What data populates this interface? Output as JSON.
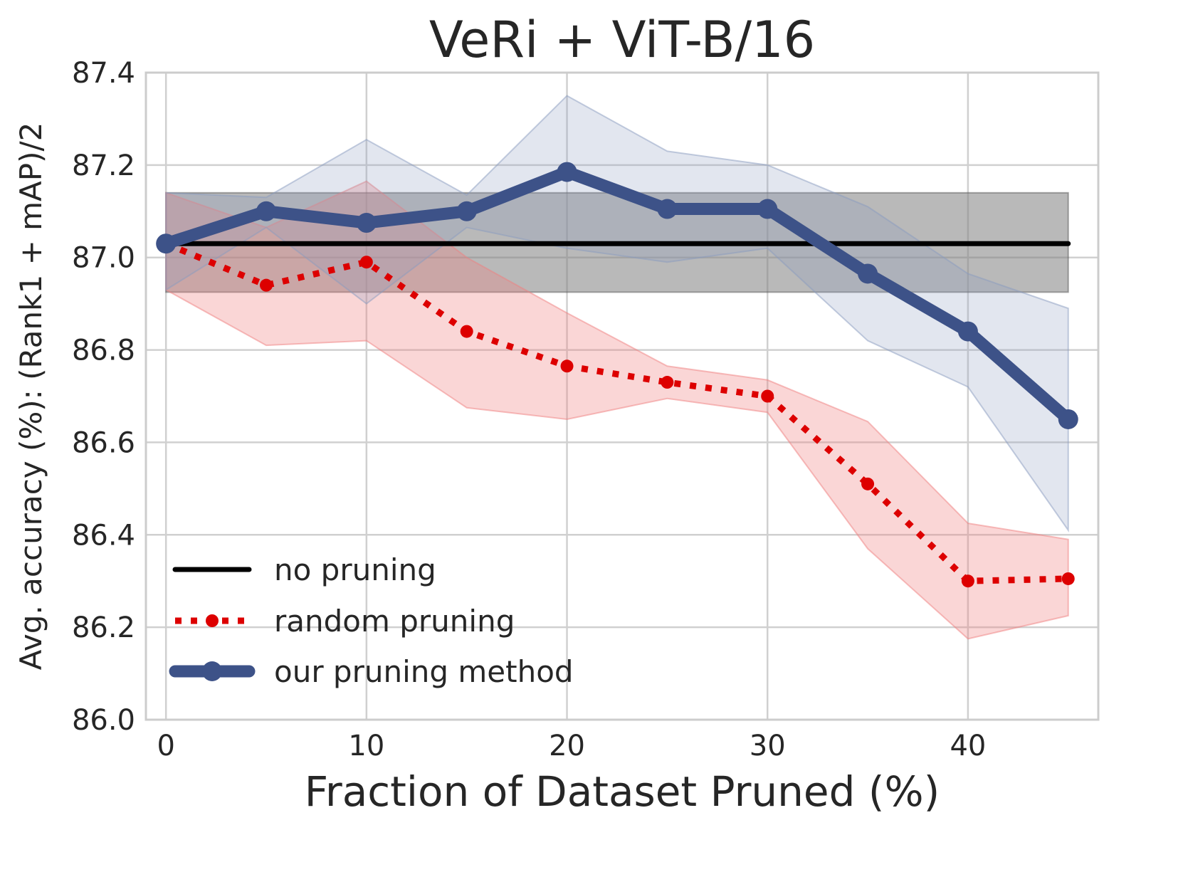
{
  "chart_data": {
    "type": "line",
    "title": "VeRi + ViT-B/16",
    "xlabel": "Fraction of Dataset Pruned (%)",
    "ylabel": "Avg. accuracy (%): (Rank1 + mAP)/2",
    "xlim": [
      -1,
      46.5
    ],
    "ylim": [
      86.0,
      87.4
    ],
    "xticks": [
      0,
      10,
      20,
      30,
      40
    ],
    "yticks": [
      86.0,
      86.2,
      86.4,
      86.6,
      86.8,
      87.0,
      87.2,
      87.4
    ],
    "ytick_labels": [
      "86.0",
      "86.2",
      "86.4",
      "86.6",
      "86.8",
      "87.0",
      "87.2",
      "87.4"
    ],
    "grid": true,
    "legend_position": "lower-left",
    "baseline": {
      "name": "no pruning",
      "color": "#000000",
      "x": [
        0,
        45
      ],
      "value": 87.03,
      "band_lower": 86.925,
      "band_upper": 87.14
    },
    "series": [
      {
        "name": "random pruning",
        "color": "#dd0000",
        "band_color": "#f08080",
        "style": "dotted-markers",
        "x": [
          0,
          5,
          10,
          15,
          20,
          25,
          30,
          35,
          40,
          45
        ],
        "values": [
          87.03,
          86.94,
          86.99,
          86.84,
          86.765,
          86.73,
          86.7,
          86.51,
          86.3,
          86.305
        ],
        "lower": [
          86.93,
          86.81,
          86.82,
          86.675,
          86.65,
          86.695,
          86.665,
          86.37,
          86.175,
          86.225
        ],
        "upper": [
          87.14,
          87.065,
          87.165,
          87.0,
          86.88,
          86.765,
          86.735,
          86.645,
          86.425,
          86.39
        ]
      },
      {
        "name": "our pruning method",
        "color": "#3d5288",
        "band_color": "#8a9bbf",
        "style": "thick-solid-markers",
        "x": [
          0,
          5,
          10,
          15,
          20,
          25,
          30,
          35,
          40,
          45
        ],
        "values": [
          87.03,
          87.1,
          87.075,
          87.1,
          87.185,
          87.105,
          87.105,
          86.965,
          86.84,
          86.65
        ],
        "lower": [
          86.93,
          87.065,
          86.9,
          87.065,
          87.02,
          86.99,
          87.02,
          86.82,
          86.72,
          86.41
        ],
        "upper": [
          87.14,
          87.13,
          87.255,
          87.135,
          87.35,
          87.23,
          87.2,
          87.11,
          86.965,
          86.89
        ]
      }
    ]
  }
}
